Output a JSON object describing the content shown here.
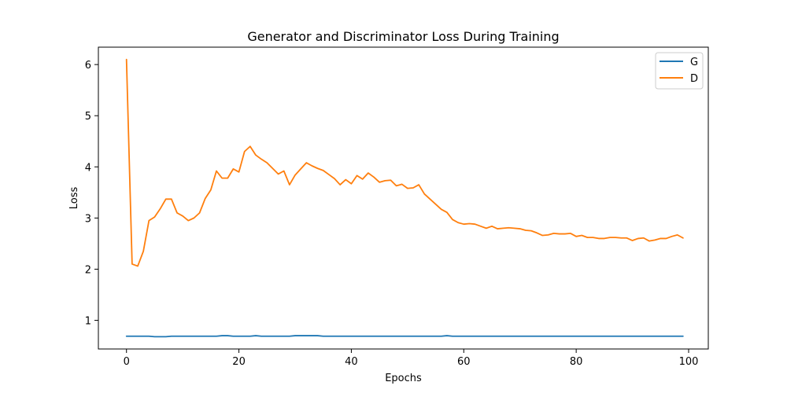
{
  "chart_data": {
    "type": "line",
    "title": "Generator and Discriminator Loss During Training",
    "xlabel": "Epochs",
    "ylabel": "Loss",
    "xlim": [
      -5,
      103.5
    ],
    "ylim": [
      0.44,
      6.34
    ],
    "xticks": [
      0,
      20,
      40,
      60,
      80,
      100
    ],
    "yticks": [
      1,
      2,
      3,
      4,
      5,
      6
    ],
    "grid": false,
    "legend": "top-right",
    "series": [
      {
        "name": "G",
        "color": "#1f77b4",
        "x": [
          0,
          1,
          2,
          3,
          4,
          5,
          6,
          7,
          8,
          9,
          10,
          11,
          12,
          13,
          14,
          15,
          16,
          17,
          18,
          19,
          20,
          21,
          22,
          23,
          24,
          25,
          26,
          27,
          28,
          29,
          30,
          31,
          32,
          33,
          34,
          35,
          36,
          37,
          38,
          39,
          40,
          41,
          42,
          43,
          44,
          45,
          46,
          47,
          48,
          49,
          50,
          51,
          52,
          53,
          54,
          55,
          56,
          57,
          58,
          59,
          60,
          61,
          62,
          63,
          64,
          65,
          66,
          67,
          68,
          69,
          70,
          71,
          72,
          73,
          74,
          75,
          76,
          77,
          78,
          79,
          80,
          81,
          82,
          83,
          84,
          85,
          86,
          87,
          88,
          89,
          90,
          91,
          92,
          93,
          94,
          95,
          96,
          97,
          98,
          99
        ],
        "values": [
          0.69,
          0.69,
          0.69,
          0.69,
          0.69,
          0.68,
          0.68,
          0.68,
          0.69,
          0.69,
          0.69,
          0.69,
          0.69,
          0.69,
          0.69,
          0.69,
          0.69,
          0.7,
          0.7,
          0.69,
          0.69,
          0.69,
          0.69,
          0.7,
          0.69,
          0.69,
          0.69,
          0.69,
          0.69,
          0.69,
          0.7,
          0.7,
          0.7,
          0.7,
          0.7,
          0.69,
          0.69,
          0.69,
          0.69,
          0.69,
          0.69,
          0.69,
          0.69,
          0.69,
          0.69,
          0.69,
          0.69,
          0.69,
          0.69,
          0.69,
          0.69,
          0.69,
          0.69,
          0.69,
          0.69,
          0.69,
          0.69,
          0.7,
          0.69,
          0.69,
          0.69,
          0.69,
          0.69,
          0.69,
          0.69,
          0.69,
          0.69,
          0.69,
          0.69,
          0.69,
          0.69,
          0.69,
          0.69,
          0.69,
          0.69,
          0.69,
          0.69,
          0.69,
          0.69,
          0.69,
          0.69,
          0.69,
          0.69,
          0.69,
          0.69,
          0.69,
          0.69,
          0.69,
          0.69,
          0.69,
          0.69,
          0.69,
          0.69,
          0.69,
          0.69,
          0.69,
          0.69,
          0.69,
          0.69,
          0.69
        ]
      },
      {
        "name": "D",
        "color": "#ff7f0e",
        "x": [
          0,
          1,
          2,
          3,
          4,
          5,
          6,
          7,
          8,
          9,
          10,
          11,
          12,
          13,
          14,
          15,
          16,
          17,
          18,
          19,
          20,
          21,
          22,
          23,
          24,
          25,
          26,
          27,
          28,
          29,
          30,
          31,
          32,
          33,
          34,
          35,
          36,
          37,
          38,
          39,
          40,
          41,
          42,
          43,
          44,
          45,
          46,
          47,
          48,
          49,
          50,
          51,
          52,
          53,
          54,
          55,
          56,
          57,
          58,
          59,
          60,
          61,
          62,
          63,
          64,
          65,
          66,
          67,
          68,
          69,
          70,
          71,
          72,
          73,
          74,
          75,
          76,
          77,
          78,
          79,
          80,
          81,
          82,
          83,
          84,
          85,
          86,
          87,
          88,
          89,
          90,
          91,
          92,
          93,
          94,
          95,
          96,
          97,
          98,
          99
        ],
        "values": [
          6.1,
          2.1,
          2.06,
          2.35,
          2.95,
          3.02,
          3.18,
          3.37,
          3.37,
          3.1,
          3.04,
          2.95,
          3.0,
          3.1,
          3.38,
          3.55,
          3.92,
          3.78,
          3.78,
          3.96,
          3.9,
          4.3,
          4.4,
          4.23,
          4.15,
          4.08,
          3.97,
          3.86,
          3.92,
          3.65,
          3.84,
          3.96,
          4.08,
          4.02,
          3.97,
          3.93,
          3.85,
          3.77,
          3.65,
          3.75,
          3.67,
          3.83,
          3.76,
          3.88,
          3.8,
          3.7,
          3.73,
          3.74,
          3.63,
          3.66,
          3.58,
          3.59,
          3.65,
          3.47,
          3.37,
          3.27,
          3.17,
          3.11,
          2.97,
          2.91,
          2.88,
          2.89,
          2.88,
          2.84,
          2.8,
          2.84,
          2.79,
          2.8,
          2.81,
          2.8,
          2.79,
          2.76,
          2.75,
          2.71,
          2.66,
          2.67,
          2.7,
          2.69,
          2.69,
          2.7,
          2.64,
          2.66,
          2.62,
          2.62,
          2.6,
          2.6,
          2.62,
          2.62,
          2.61,
          2.61,
          2.56,
          2.6,
          2.61,
          2.55,
          2.57,
          2.6,
          2.6,
          2.64,
          2.67,
          2.61
        ]
      }
    ]
  }
}
